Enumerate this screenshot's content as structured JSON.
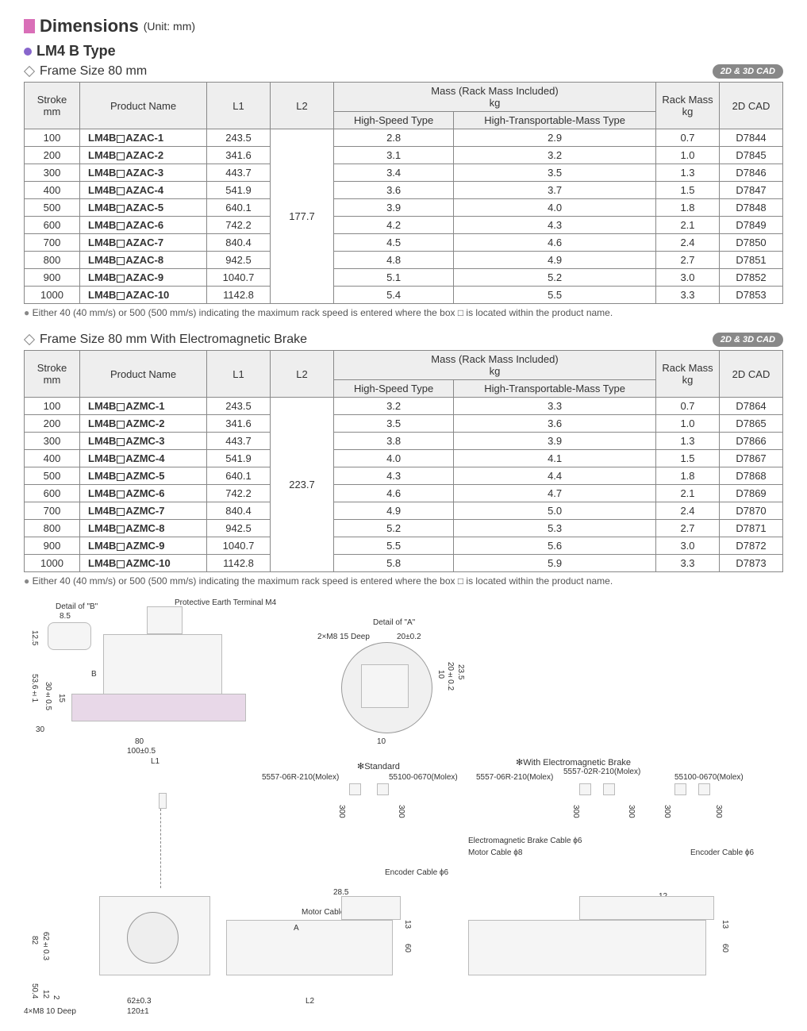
{
  "header": {
    "title": "Dimensions",
    "unit": "(Unit: mm)"
  },
  "subtype": {
    "label": "LM4 B Type"
  },
  "cad_badge": "2D & 3D CAD",
  "table1": {
    "frame_title": "Frame Size 80 mm",
    "columns": {
      "stroke": "Stroke\nmm",
      "product": "Product Name",
      "l1": "L1",
      "l2": "L2",
      "mass_group": "Mass (Rack Mass Included)\nkg",
      "mass_hs": "High-Speed Type",
      "mass_ht": "High-Transportable-Mass Type",
      "rack": "Rack Mass\nkg",
      "cad": "2D CAD"
    },
    "l2_value": "177.7",
    "rows": [
      {
        "stroke": "100",
        "product": "LM4B□AZAC-1",
        "l1": "243.5",
        "hs": "2.8",
        "ht": "2.9",
        "rack": "0.7",
        "cad": "D7844"
      },
      {
        "stroke": "200",
        "product": "LM4B□AZAC-2",
        "l1": "341.6",
        "hs": "3.1",
        "ht": "3.2",
        "rack": "1.0",
        "cad": "D7845"
      },
      {
        "stroke": "300",
        "product": "LM4B□AZAC-3",
        "l1": "443.7",
        "hs": "3.4",
        "ht": "3.5",
        "rack": "1.3",
        "cad": "D7846"
      },
      {
        "stroke": "400",
        "product": "LM4B□AZAC-4",
        "l1": "541.9",
        "hs": "3.6",
        "ht": "3.7",
        "rack": "1.5",
        "cad": "D7847"
      },
      {
        "stroke": "500",
        "product": "LM4B□AZAC-5",
        "l1": "640.1",
        "hs": "3.9",
        "ht": "4.0",
        "rack": "1.8",
        "cad": "D7848"
      },
      {
        "stroke": "600",
        "product": "LM4B□AZAC-6",
        "l1": "742.2",
        "hs": "4.2",
        "ht": "4.3",
        "rack": "2.1",
        "cad": "D7849"
      },
      {
        "stroke": "700",
        "product": "LM4B□AZAC-7",
        "l1": "840.4",
        "hs": "4.5",
        "ht": "4.6",
        "rack": "2.4",
        "cad": "D7850"
      },
      {
        "stroke": "800",
        "product": "LM4B□AZAC-8",
        "l1": "942.5",
        "hs": "4.8",
        "ht": "4.9",
        "rack": "2.7",
        "cad": "D7851"
      },
      {
        "stroke": "900",
        "product": "LM4B□AZAC-9",
        "l1": "1040.7",
        "hs": "5.1",
        "ht": "5.2",
        "rack": "3.0",
        "cad": "D7852"
      },
      {
        "stroke": "1000",
        "product": "LM4B□AZAC-10",
        "l1": "1142.8",
        "hs": "5.4",
        "ht": "5.5",
        "rack": "3.3",
        "cad": "D7853"
      }
    ]
  },
  "table2": {
    "frame_title": "Frame Size 80 mm  With Electromagnetic Brake",
    "l2_value": "223.7",
    "rows": [
      {
        "stroke": "100",
        "product": "LM4B□AZMC-1",
        "l1": "243.5",
        "hs": "3.2",
        "ht": "3.3",
        "rack": "0.7",
        "cad": "D7864"
      },
      {
        "stroke": "200",
        "product": "LM4B□AZMC-2",
        "l1": "341.6",
        "hs": "3.5",
        "ht": "3.6",
        "rack": "1.0",
        "cad": "D7865"
      },
      {
        "stroke": "300",
        "product": "LM4B□AZMC-3",
        "l1": "443.7",
        "hs": "3.8",
        "ht": "3.9",
        "rack": "1.3",
        "cad": "D7866"
      },
      {
        "stroke": "400",
        "product": "LM4B□AZMC-4",
        "l1": "541.9",
        "hs": "4.0",
        "ht": "4.1",
        "rack": "1.5",
        "cad": "D7867"
      },
      {
        "stroke": "500",
        "product": "LM4B□AZMC-5",
        "l1": "640.1",
        "hs": "4.3",
        "ht": "4.4",
        "rack": "1.8",
        "cad": "D7868"
      },
      {
        "stroke": "600",
        "product": "LM4B□AZMC-6",
        "l1": "742.2",
        "hs": "4.6",
        "ht": "4.7",
        "rack": "2.1",
        "cad": "D7869"
      },
      {
        "stroke": "700",
        "product": "LM4B□AZMC-7",
        "l1": "840.4",
        "hs": "4.9",
        "ht": "5.0",
        "rack": "2.4",
        "cad": "D7870"
      },
      {
        "stroke": "800",
        "product": "LM4B□AZMC-8",
        "l1": "942.5",
        "hs": "5.2",
        "ht": "5.3",
        "rack": "2.7",
        "cad": "D7871"
      },
      {
        "stroke": "900",
        "product": "LM4B□AZMC-9",
        "l1": "1040.7",
        "hs": "5.5",
        "ht": "5.6",
        "rack": "3.0",
        "cad": "D7872"
      },
      {
        "stroke": "1000",
        "product": "LM4B□AZMC-10",
        "l1": "1142.8",
        "hs": "5.8",
        "ht": "5.9",
        "rack": "3.3",
        "cad": "D7873"
      }
    ]
  },
  "footnote": "Either 40 (40 mm/s) or 500 (500 mm/s) indicating the maximum rack speed is entered where the box □ is located within the product name.",
  "drawing_labels": {
    "detail_b": "Detail of \"B\"",
    "pe_terminal": "Protective Earth Terminal M4",
    "detail_a": "Detail of \"A\"",
    "m8_deep": "2×M8 15 Deep",
    "standard": "✻Standard",
    "with_brake": "✻With Electromagnetic Brake",
    "conn_06r": "5557-06R-210(Molex)",
    "conn_0670": "55100-0670(Molex)",
    "conn_02r": "5557-02R-210(Molex)",
    "brake_cable": "Electromagnetic Brake Cable ϕ6",
    "motor_cable": "Motor Cable ϕ8",
    "encoder_cable": "Encoder Cable ϕ6",
    "m8_10deep": "4×M8 10 Deep",
    "dim_8_5": "8.5",
    "dim_125": "12.5",
    "dim_b": "B",
    "dim_15": "15",
    "dim_30": "30",
    "dim_30t": "30±0.5",
    "dim_536": "53.6±1",
    "dim_80": "80",
    "dim_100": "100±0.5",
    "dim_l1": "L1",
    "dim_20": "20±0.2",
    "dim_10": "10",
    "dim_20v": "20±0.2",
    "dim_235": "23.5",
    "dim_300": "300",
    "dim_285": "28.5",
    "dim_12": "12",
    "dim_13": "13",
    "dim_60": "60",
    "dim_l2": "L2",
    "dim_a": "A",
    "dim_82": "82",
    "dim_62": "62±0.3",
    "dim_504": "50.4",
    "dim_2": "2",
    "dim_120": "120±1",
    "dim_62_2": "62±0.3"
  }
}
